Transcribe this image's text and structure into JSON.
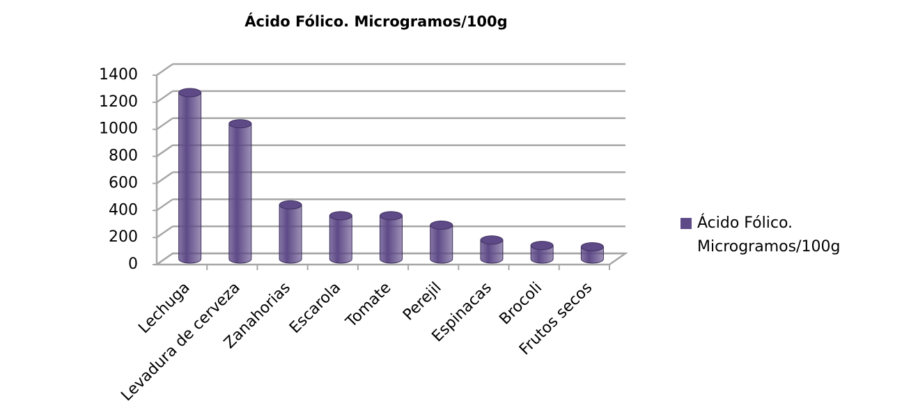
{
  "chart_data": {
    "type": "bar",
    "title": "Ácido Fólico. Microgramos/100g",
    "categories": [
      "Lechuga",
      "Levadura de cerveza",
      "Zanahorias",
      "Escarola",
      "Tomate",
      "Perejil",
      "Espinacas",
      "Brocoli",
      "Frutos secos"
    ],
    "series": [
      {
        "name": "Ácido Fólico. Microgramos/100g",
        "color": "#5e4a87",
        "values": [
          1230,
          1000,
          400,
          320,
          320,
          250,
          140,
          100,
          90
        ]
      }
    ],
    "ylim": [
      0,
      1400
    ],
    "yticks": [
      0,
      200,
      400,
      600,
      800,
      1000,
      1200,
      1400
    ],
    "grid": true
  }
}
